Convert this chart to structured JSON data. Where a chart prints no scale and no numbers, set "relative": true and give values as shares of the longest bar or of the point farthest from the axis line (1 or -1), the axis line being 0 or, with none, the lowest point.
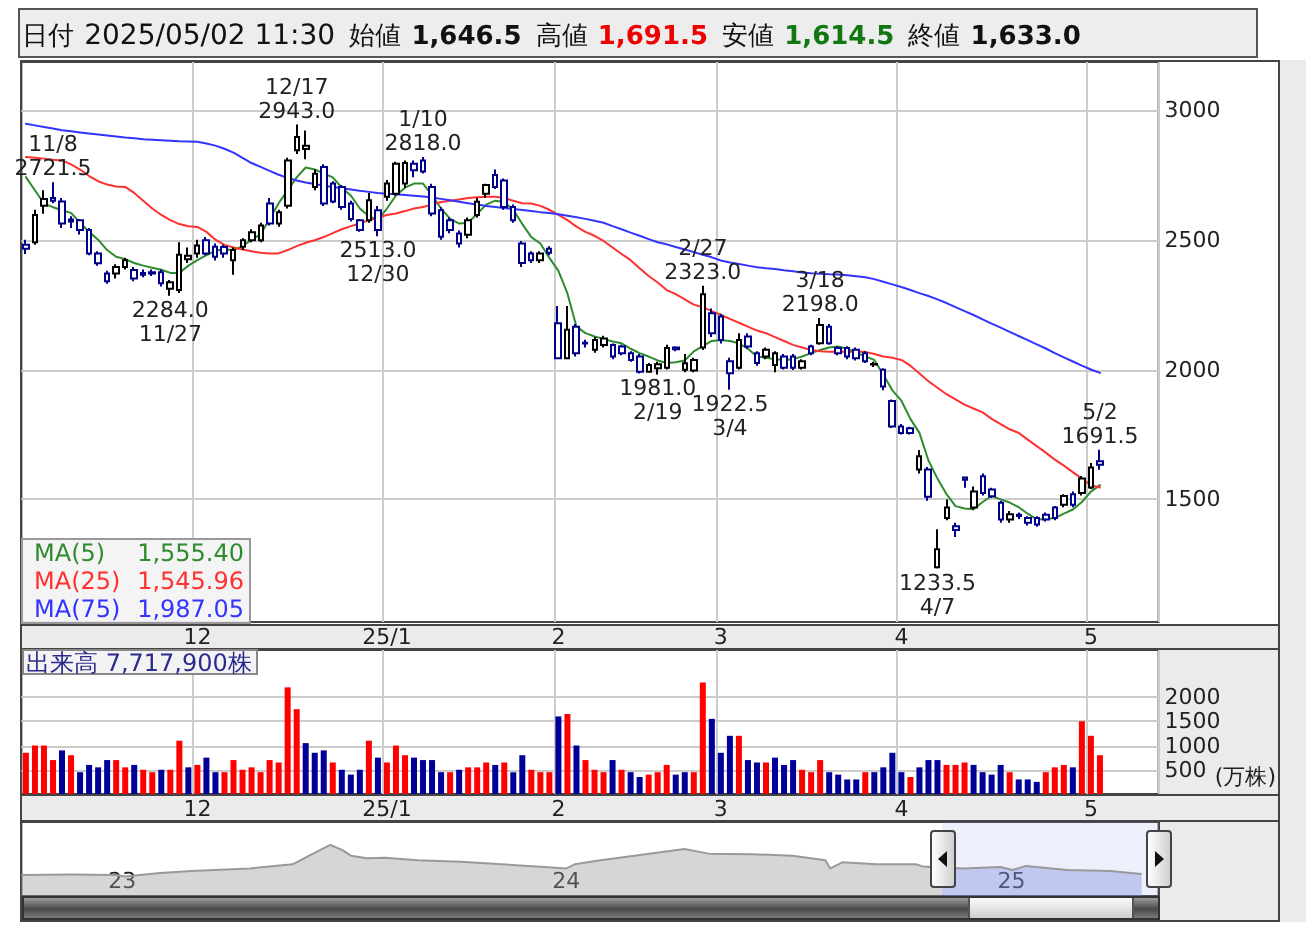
{
  "chart_data": [
    {
      "type": "other",
      "annotations": [
        "日付 2025/05/02 11:30",
        "始値 1,646.5",
        "高値 1,691.5",
        "安値 1,614.5",
        "終値 1,633.0"
      ]
    },
    {
      "type": "candlestick",
      "categories": [
        null,
        null,
        null,
        null,
        null,
        null,
        null,
        null,
        null,
        null,
        null,
        null,
        null,
        null,
        null,
        null,
        null,
        null,
        null,
        "12",
        null,
        null,
        null,
        null,
        null,
        null,
        null,
        null,
        null,
        null,
        null,
        null,
        null,
        null,
        null,
        null,
        null,
        null,
        null,
        null,
        "25/1",
        null,
        null,
        null,
        null,
        null,
        null,
        null,
        null,
        null,
        null,
        null,
        null,
        null,
        null,
        null,
        null,
        null,
        null,
        "2",
        null,
        null,
        null,
        null,
        null,
        null,
        null,
        null,
        null,
        null,
        null,
        null,
        null,
        null,
        null,
        null,
        null,
        "3",
        null,
        null,
        null,
        null,
        null,
        null,
        null,
        null,
        null,
        null,
        null,
        null,
        null,
        null,
        null,
        null,
        null,
        null,
        null,
        "4",
        null,
        null,
        null,
        null,
        null,
        null,
        null,
        null,
        null,
        null,
        null,
        null,
        null,
        null,
        null,
        null,
        null,
        null,
        null,
        null,
        "5",
        null,
        null,
        null,
        null,
        null,
        null,
        null
      ],
      "ohlc": [
        [
          2480,
          2500,
          2445,
          2465
        ],
        [
          2490,
          2615,
          2480,
          2595
        ],
        [
          2631,
          2690,
          2600,
          2657
        ],
        [
          2660,
          2721.5,
          2640,
          2650
        ],
        [
          2647,
          2660,
          2545,
          2562
        ],
        [
          2578,
          2590,
          2545,
          2570
        ],
        [
          2575,
          2580,
          2520,
          2537
        ],
        [
          2537,
          2545,
          2440,
          2447
        ],
        [
          2447,
          2455,
          2400,
          2409
        ],
        [
          2370,
          2380,
          2330,
          2340
        ],
        [
          2370,
          2405,
          2350,
          2395
        ],
        [
          2395,
          2430,
          2385,
          2421
        ],
        [
          2383,
          2395,
          2340,
          2350
        ],
        [
          2372,
          2385,
          2355,
          2365
        ],
        [
          2375,
          2385,
          2360,
          2370
        ],
        [
          2375,
          2385,
          2320,
          2332
        ],
        [
          2311,
          2345,
          2284.0,
          2336
        ],
        [
          2306,
          2490,
          2295,
          2442
        ],
        [
          2425,
          2470,
          2410,
          2438
        ],
        [
          2447,
          2500,
          2430,
          2478
        ],
        [
          2498,
          2510,
          2440,
          2447
        ],
        [
          2473,
          2485,
          2420,
          2434
        ],
        [
          2472,
          2480,
          2430,
          2447
        ],
        [
          2421,
          2470,
          2365,
          2460
        ],
        [
          2473,
          2505,
          2460,
          2498
        ],
        [
          2498,
          2540,
          2490,
          2529
        ],
        [
          2498,
          2565,
          2490,
          2555
        ],
        [
          2639,
          2660,
          2555,
          2562
        ],
        [
          2562,
          2615,
          2550,
          2606
        ],
        [
          2631,
          2815,
          2620,
          2805
        ],
        [
          2844,
          2943.0,
          2830,
          2895
        ],
        [
          2849,
          2920,
          2810,
          2862
        ],
        [
          2703,
          2770,
          2690,
          2754
        ],
        [
          2780,
          2790,
          2630,
          2639
        ],
        [
          2716,
          2725,
          2640,
          2647
        ],
        [
          2703,
          2710,
          2615,
          2626
        ],
        [
          2639,
          2650,
          2570,
          2580
        ],
        [
          2575,
          2580,
          2530,
          2537
        ],
        [
          2575,
          2680,
          2565,
          2652
        ],
        [
          2613,
          2630,
          2513.0,
          2537
        ],
        [
          2665,
          2730,
          2650,
          2716
        ],
        [
          2677,
          2800,
          2670,
          2792
        ],
        [
          2716,
          2805,
          2700,
          2795
        ],
        [
          2792,
          2805,
          2740,
          2767
        ],
        [
          2805,
          2818.0,
          2755,
          2762
        ],
        [
          2703,
          2715,
          2590,
          2601
        ],
        [
          2613,
          2625,
          2500,
          2511
        ],
        [
          2575,
          2585,
          2525,
          2537
        ],
        [
          2524,
          2535,
          2470,
          2485
        ],
        [
          2519,
          2585,
          2505,
          2575
        ],
        [
          2595,
          2660,
          2585,
          2646
        ],
        [
          2677,
          2715,
          2660,
          2710
        ],
        [
          2749,
          2770,
          2695,
          2703
        ],
        [
          2728,
          2735,
          2615,
          2626
        ],
        [
          2626,
          2635,
          2565,
          2575
        ],
        [
          2485,
          2495,
          2395,
          2410
        ],
        [
          2447,
          2455,
          2410,
          2421
        ],
        [
          2421,
          2455,
          2410,
          2447
        ],
        [
          2465,
          2475,
          2440,
          2450
        ],
        [
          2178,
          2245,
          2040,
          2043
        ],
        [
          2043,
          2245,
          2040,
          2153
        ],
        [
          2165,
          2175,
          2050,
          2063
        ],
        [
          2103,
          2115,
          2085,
          2100
        ],
        [
          2076,
          2125,
          2065,
          2114
        ],
        [
          2094,
          2130,
          2085,
          2119
        ],
        [
          2094,
          2100,
          2040,
          2050
        ],
        [
          2089,
          2095,
          2055,
          2063
        ],
        [
          2063,
          2070,
          2030,
          2037
        ],
        [
          2050,
          2060,
          1985,
          1991
        ],
        [
          1991,
          2025,
          1988,
          2017
        ],
        [
          2005,
          2030,
          1981.0,
          2020
        ],
        [
          2007,
          2095,
          2000,
          2083
        ],
        [
          2085,
          2090,
          2070,
          2078
        ],
        [
          1999,
          2060,
          1990,
          2024
        ],
        [
          1996,
          2045,
          1990,
          2037
        ],
        [
          2085,
          2323.0,
          2075,
          2290
        ],
        [
          2217,
          2235,
          2125,
          2140
        ],
        [
          2204,
          2215,
          2100,
          2114
        ],
        [
          2032,
          2045,
          1922.5,
          1986
        ],
        [
          2007,
          2140,
          2000,
          2114
        ],
        [
          2127,
          2140,
          2080,
          2089
        ],
        [
          2063,
          2070,
          2015,
          2025
        ],
        [
          2050,
          2085,
          2040,
          2076
        ],
        [
          2017,
          2070,
          1990,
          2063
        ],
        [
          2050,
          2060,
          2000,
          2007
        ],
        [
          2050,
          2060,
          1998,
          2007
        ],
        [
          2007,
          2040,
          2000,
          2032
        ],
        [
          2089,
          2095,
          2055,
          2063
        ],
        [
          2101,
          2198.0,
          2095,
          2171
        ],
        [
          2165,
          2175,
          2095,
          2101
        ],
        [
          2083,
          2090,
          2055,
          2063
        ],
        [
          2083,
          2090,
          2040,
          2050
        ],
        [
          2076,
          2085,
          2035,
          2043
        ],
        [
          2063,
          2070,
          2025,
          2032
        ],
        [
          2021,
          2030,
          2010,
          2019
        ],
        [
          1999,
          2005,
          1920,
          1935
        ],
        [
          1879,
          1885,
          1775,
          1781
        ],
        [
          1781,
          1790,
          1750,
          1756
        ],
        [
          1774,
          1780,
          1750,
          1756
        ],
        [
          1615,
          1690,
          1600,
          1666
        ],
        [
          1615,
          1625,
          1495,
          1510
        ],
        [
          1239,
          1385,
          1233.5,
          1308
        ],
        [
          1428,
          1500,
          1420,
          1469
        ],
        [
          1397,
          1410,
          1355,
          1382
        ],
        [
          1584,
          1586,
          1545,
          1576
        ],
        [
          1469,
          1550,
          1460,
          1530
        ],
        [
          1589,
          1600,
          1515,
          1525
        ],
        [
          1538,
          1545,
          1505,
          1512
        ],
        [
          1487,
          1495,
          1410,
          1423
        ],
        [
          1423,
          1455,
          1410,
          1443
        ],
        [
          1441,
          1450,
          1425,
          1436
        ],
        [
          1428,
          1435,
          1400,
          1410
        ],
        [
          1428,
          1435,
          1395,
          1403
        ],
        [
          1441,
          1450,
          1415,
          1423
        ],
        [
          1469,
          1475,
          1420,
          1428
        ],
        [
          1479,
          1520,
          1470,
          1513
        ],
        [
          1520,
          1530,
          1470,
          1479
        ],
        [
          1525,
          1590,
          1515,
          1580
        ],
        [
          1546,
          1640,
          1540,
          1623
        ],
        [
          1646.5,
          1691.5,
          1614.5,
          1633.0
        ],
        null,
        null,
        null,
        null,
        null,
        null
      ],
      "colors": [
        "#00008b",
        "#000000",
        "#000000",
        "#00008b",
        "#00008b",
        "#00008b",
        "#00008b",
        "#00008b",
        "#00008b",
        "#00008b",
        "#000000",
        "#000000",
        "#00008b",
        "#00008b",
        "#00008b",
        "#00008b",
        "#000000",
        "#000000",
        "#000000",
        "#000000",
        "#00008b",
        "#00008b",
        "#00008b",
        "#000000",
        "#000000",
        "#000000",
        "#000000",
        "#00008b",
        "#000000",
        "#000000",
        "#000000",
        "#000000",
        "#000000",
        "#00008b",
        "#00008b",
        "#00008b",
        "#00008b",
        "#00008b",
        "#000000",
        "#00008b",
        "#000000",
        "#000000",
        "#000000",
        "#00008b",
        "#00008b",
        "#00008b",
        "#00008b",
        "#00008b",
        "#00008b",
        "#000000",
        "#000000",
        "#000000",
        "#00008b",
        "#00008b",
        "#00008b",
        "#00008b",
        "#00008b",
        "#000000",
        "#00008b",
        "#00008b",
        "#000000",
        "#00008b",
        "#00008b",
        "#000000",
        "#000000",
        "#00008b",
        "#00008b",
        "#00008b",
        "#00008b",
        "#000000",
        "#000000",
        "#000000",
        "#00008b",
        "#000000",
        "#000000",
        "#000000",
        "#00008b",
        "#00008b",
        "#00008b",
        "#000000",
        "#00008b",
        "#00008b",
        "#000000",
        "#000000",
        "#00008b",
        "#00008b",
        "#000000",
        "#00008b",
        "#000000",
        "#00008b",
        "#00008b",
        "#00008b",
        "#00008b",
        "#00008b",
        "#000000",
        "#00008b",
        "#00008b",
        "#00008b",
        "#00008b",
        "#000000",
        "#00008b",
        "#000000",
        "#000000",
        "#00008b",
        "#00008b",
        "#000000",
        "#00008b",
        "#00008b",
        "#00008b",
        "#000000",
        "#00008b",
        "#00008b",
        "#00008b",
        "#00008b",
        "#00008b",
        "#000000",
        "#00008b",
        "#000000",
        "#000000",
        "#00008b",
        null,
        null,
        null,
        null,
        null,
        null
      ],
      "value_labels": [
        null,
        null,
        null,
        "11/8\n2721.5",
        null,
        null,
        null,
        null,
        null,
        null,
        null,
        null,
        null,
        null,
        null,
        null,
        "2284.0\n11/27",
        null,
        null,
        null,
        null,
        null,
        null,
        null,
        null,
        null,
        null,
        null,
        null,
        null,
        "12/17\n2943.0",
        null,
        null,
        null,
        null,
        null,
        null,
        null,
        null,
        "2513.0\n12/30",
        null,
        null,
        null,
        null,
        "1/10\n2818.0",
        null,
        null,
        null,
        null,
        null,
        null,
        null,
        null,
        null,
        null,
        null,
        null,
        null,
        null,
        null,
        null,
        null,
        null,
        null,
        null,
        null,
        null,
        null,
        null,
        null,
        "1981.0\n2/19",
        null,
        null,
        null,
        null,
        "2/27\n2323.0",
        null,
        null,
        "1922.5\n3/4",
        null,
        null,
        null,
        null,
        null,
        null,
        null,
        null,
        null,
        "3/18\n2198.0",
        null,
        null,
        null,
        null,
        null,
        null,
        null,
        null,
        null,
        null,
        null,
        null,
        "1233.5\n4/7",
        null,
        null,
        null,
        null,
        null,
        null,
        null,
        null,
        null,
        null,
        null,
        null,
        null,
        null,
        null,
        null,
        null,
        "5/2\n1691.5",
        null,
        null,
        null,
        null,
        null,
        null
      ],
      "series": [
        {
          "type": "line",
          "name": "MA(5)",
          "color": "#2e8b2e",
          "values": [
            2741,
            2690,
            2639,
            2625,
            2613,
            2603,
            2565,
            2530,
            2500,
            2460,
            2434,
            2425,
            2410,
            2400,
            2392,
            2384,
            2372,
            2372,
            2400,
            2421,
            2440,
            2458,
            2462,
            2460,
            2475,
            2500,
            2520,
            2580,
            2640,
            2690,
            2740,
            2778,
            2770,
            2755,
            2740,
            2700,
            2670,
            2620,
            2590,
            2575,
            2620,
            2670,
            2700,
            2716,
            2716,
            2670,
            2620,
            2580,
            2562,
            2565,
            2600,
            2635,
            2650,
            2645,
            2615,
            2560,
            2510,
            2485,
            2430,
            2380,
            2293,
            2165,
            2140,
            2127,
            2118,
            2108,
            2101,
            2080,
            2063,
            2050,
            2035,
            2025,
            2028,
            2035,
            2070,
            2090,
            2110,
            2114,
            2110,
            2101,
            2080,
            2050,
            2045,
            2040,
            2037,
            2040,
            2050,
            2063,
            2075,
            2085,
            2089,
            2080,
            2065,
            2050,
            2037,
            1980,
            1920,
            1880,
            1810,
            1756,
            1650,
            1580,
            1520,
            1474,
            1465,
            1462,
            1490,
            1513,
            1500,
            1488,
            1470,
            1445,
            1423,
            1425,
            1428,
            1445,
            1461,
            1490,
            1530,
            1555,
            null,
            null,
            null,
            null,
            null,
            null
          ]
        },
        {
          "type": "line",
          "name": "MA(25)",
          "color": "#ff3030",
          "values": [
            2818,
            2815,
            2812,
            2808,
            2805,
            2790,
            2770,
            2745,
            2725,
            2712,
            2705,
            2703,
            2680,
            2650,
            2620,
            2595,
            2575,
            2560,
            2552,
            2549,
            2530,
            2500,
            2480,
            2470,
            2462,
            2455,
            2450,
            2447,
            2447,
            2460,
            2475,
            2488,
            2498,
            2510,
            2525,
            2540,
            2552,
            2562,
            2575,
            2585,
            2595,
            2601,
            2610,
            2620,
            2626,
            2635,
            2645,
            2650,
            2655,
            2660,
            2663,
            2665,
            2665,
            2660,
            2650,
            2640,
            2639,
            2630,
            2615,
            2595,
            2575,
            2550,
            2530,
            2515,
            2495,
            2470,
            2445,
            2421,
            2390,
            2360,
            2335,
            2306,
            2290,
            2270,
            2250,
            2240,
            2225,
            2210,
            2195,
            2180,
            2165,
            2150,
            2140,
            2125,
            2110,
            2095,
            2085,
            2075,
            2070,
            2068,
            2068,
            2068,
            2068,
            2068,
            2060,
            2050,
            2045,
            2037,
            2015,
            1985,
            1955,
            1930,
            1905,
            1885,
            1865,
            1850,
            1835,
            1810,
            1790,
            1770,
            1756,
            1730,
            1705,
            1680,
            1653,
            1630,
            1605,
            1580,
            1555,
            1546,
            null,
            null,
            null,
            null,
            null,
            null
          ]
        },
        {
          "type": "line",
          "name": "MA(75)",
          "color": "#3333ff",
          "values": [
            2946,
            2940,
            2934,
            2928,
            2921,
            2917,
            2913,
            2909,
            2905,
            2901,
            2897,
            2893,
            2890,
            2887,
            2885,
            2883,
            2881,
            2879,
            2878,
            2877,
            2870,
            2862,
            2850,
            2835,
            2815,
            2795,
            2780,
            2765,
            2750,
            2738,
            2728,
            2720,
            2714,
            2708,
            2703,
            2698,
            2693,
            2688,
            2684,
            2680,
            2677,
            2675,
            2672,
            2669,
            2666,
            2662,
            2657,
            2652,
            2646,
            2640,
            2635,
            2630,
            2626,
            2622,
            2618,
            2614,
            2610,
            2606,
            2603,
            2598,
            2592,
            2586,
            2580,
            2573,
            2565,
            2552,
            2540,
            2527,
            2515,
            2502,
            2490,
            2482,
            2472,
            2462,
            2452,
            2442,
            2432,
            2420,
            2412,
            2406,
            2400,
            2394,
            2390,
            2387,
            2382,
            2378,
            2374,
            2371,
            2369,
            2367,
            2366,
            2363,
            2359,
            2355,
            2348,
            2338,
            2328,
            2318,
            2306,
            2294,
            2283,
            2270,
            2256,
            2240,
            2225,
            2210,
            2193,
            2177,
            2161,
            2145,
            2129,
            2113,
            2097,
            2081,
            2063,
            2047,
            2031,
            2015,
            2000,
            1987,
            null,
            null,
            null,
            null,
            null,
            null
          ]
        }
      ],
      "annotations": [
        "1,555.40",
        "1,545.96",
        "1,987.05"
      ],
      "ylim": [
        1028,
        3184
      ],
      "yticks": [
        1500,
        2000,
        2500,
        3000
      ],
      "grid": true,
      "legend": "bottom left"
    },
    {
      "type": "bar",
      "title": "出来高 7,717,900株",
      "ylabel": "(万株)",
      "categories": [
        null,
        null,
        null,
        null,
        null,
        null,
        null,
        null,
        null,
        null,
        null,
        null,
        null,
        null,
        null,
        null,
        null,
        null,
        null,
        "12",
        null,
        null,
        null,
        null,
        null,
        null,
        null,
        null,
        null,
        null,
        null,
        null,
        null,
        null,
        null,
        null,
        null,
        null,
        null,
        null,
        "25/1",
        null,
        null,
        null,
        null,
        null,
        null,
        null,
        null,
        null,
        null,
        null,
        null,
        null,
        null,
        null,
        null,
        null,
        null,
        "2",
        null,
        null,
        null,
        null,
        null,
        null,
        null,
        null,
        null,
        null,
        null,
        null,
        null,
        null,
        null,
        null,
        null,
        "3",
        null,
        null,
        null,
        null,
        null,
        null,
        null,
        null,
        null,
        null,
        null,
        null,
        null,
        null,
        null,
        null,
        null,
        null,
        null,
        "4",
        null,
        null,
        null,
        null,
        null,
        null,
        null,
        null,
        null,
        null,
        null,
        null,
        null,
        null,
        null,
        null,
        null,
        null,
        null,
        null,
        "5",
        null,
        null,
        null,
        null,
        null,
        null,
        null
      ],
      "values": [
        850,
        1000,
        1000,
        700,
        900,
        800,
        450,
        600,
        550,
        700,
        700,
        550,
        600,
        500,
        450,
        500,
        500,
        1100,
        550,
        600,
        750,
        450,
        450,
        700,
        500,
        550,
        450,
        700,
        650,
        2200,
        1750,
        1050,
        850,
        900,
        650,
        500,
        400,
        500,
        1100,
        750,
        650,
        1000,
        800,
        750,
        700,
        700,
        450,
        450,
        500,
        550,
        550,
        650,
        600,
        650,
        450,
        800,
        500,
        450,
        450,
        1600,
        1650,
        1000,
        700,
        500,
        450,
        700,
        500,
        450,
        350,
        400,
        450,
        600,
        400,
        450,
        450,
        2300,
        1550,
        850,
        1200,
        1200,
        700,
        650,
        650,
        750,
        600,
        700,
        500,
        450,
        700,
        450,
        400,
        300,
        300,
        450,
        450,
        550,
        850,
        450,
        350,
        550,
        700,
        700,
        600,
        600,
        650,
        600,
        450,
        400,
        600,
        450,
        300,
        300,
        250,
        450,
        550,
        600,
        550,
        1500,
        1200,
        800,
        null,
        null,
        null,
        null,
        null,
        null
      ],
      "colors": [
        "#ff0000",
        "#ff0000",
        "#ff0000",
        "#ff0000",
        "#000099",
        "#ff0000",
        "#000099",
        "#000099",
        "#000099",
        "#000099",
        "#ff0000",
        "#ff0000",
        "#000099",
        "#ff0000",
        "#ff0000",
        "#000099",
        "#ff0000",
        "#ff0000",
        "#000099",
        "#ff0000",
        "#000099",
        "#000099",
        "#ff0000",
        "#ff0000",
        "#ff0000",
        "#ff0000",
        "#ff0000",
        "#ff0000",
        "#ff0000",
        "#ff0000",
        "#ff0000",
        "#000099",
        "#000099",
        "#000099",
        "#ff0000",
        "#000099",
        "#000099",
        "#000099",
        "#ff0000",
        "#000099",
        "#ff0000",
        "#ff0000",
        "#ff0000",
        "#000099",
        "#000099",
        "#000099",
        "#000099",
        "#ff0000",
        "#000099",
        "#ff0000",
        "#ff0000",
        "#ff0000",
        "#000099",
        "#ff0000",
        "#000099",
        "#000099",
        "#ff0000",
        "#ff0000",
        "#ff0000",
        "#000099",
        "#ff0000",
        "#000099",
        "#ff0000",
        "#ff0000",
        "#ff0000",
        "#000099",
        "#ff0000",
        "#000099",
        "#000099",
        "#ff0000",
        "#ff0000",
        "#ff0000",
        "#000099",
        "#000099",
        "#ff0000",
        "#ff0000",
        "#000099",
        "#000099",
        "#000099",
        "#ff0000",
        "#000099",
        "#000099",
        "#ff0000",
        "#000099",
        "#000099",
        "#000099",
        "#ff0000",
        "#ff0000",
        "#ff0000",
        "#000099",
        "#000099",
        "#000099",
        "#000099",
        "#ff0000",
        "#000099",
        "#000099",
        "#000099",
        "#000099",
        "#ff0000",
        "#000099",
        "#000099",
        "#000099",
        "#ff0000",
        "#ff0000",
        "#ff0000",
        "#000099",
        "#000099",
        "#000099",
        "#000099",
        "#ff0000",
        "#000099",
        "#000099",
        "#000099",
        "#ff0000",
        "#ff0000",
        "#ff0000",
        "#000099",
        "#ff0000",
        "#ff0000",
        "#ff0000",
        null,
        null,
        null,
        null,
        null,
        null
      ],
      "ylim": [
        0,
        2970
      ],
      "yticks": [
        500,
        1000,
        1500,
        2000
      ],
      "grid": true
    },
    {
      "type": "area",
      "relative": true,
      "color": "#999999",
      "x": [
        "2022-10-10",
        "2022-11-20",
        "2022-12-27",
        "2023-01-03",
        "2023-02-01",
        "2023-02-27",
        "2023-04-16",
        "2023-05-21",
        "2023-06-10",
        "2023-06-21",
        "2023-07-01",
        "2023-07-08",
        "2023-07-21",
        "2023-08-05",
        "2023-09-01",
        "2023-10-06",
        "2023-11-09",
        "2023-12-14",
        "2024-01-01",
        "2024-01-08",
        "2024-01-29",
        "2024-02-26",
        "2024-03-23",
        "2024-04-07",
        "2024-04-27",
        "2024-06-01",
        "2024-07-05",
        "2024-08-01",
        "2024-08-05",
        "2024-08-15",
        "2024-09-12",
        "2024-10-15",
        "2024-10-20",
        "2024-11-22",
        "2024-12-23",
        "2025-01-02",
        "2025-01-13",
        "2025-02-16",
        "2025-03-23",
        "2025-04-18"
      ],
      "values": [
        0.41,
        0.42,
        0.41,
        0.38,
        0.45,
        0.49,
        0.54,
        0.62,
        0.87,
        1.0,
        0.9,
        0.79,
        0.74,
        0.75,
        0.7,
        0.67,
        0.62,
        0.57,
        0.54,
        0.62,
        0.7,
        0.79,
        0.87,
        0.92,
        0.83,
        0.82,
        0.79,
        0.7,
        0.54,
        0.66,
        0.62,
        0.62,
        0.58,
        0.54,
        0.57,
        0.51,
        0.59,
        0.51,
        0.49,
        0.43
      ],
      "xlim": [
        "2022-10-10",
        "2025-05-02"
      ],
      "xticks": [
        {
          "value": "2023-01-01",
          "label": "23"
        },
        {
          "value": "2024-01-01",
          "label": "24"
        },
        {
          "value": "2025-01-01",
          "label": "25"
        }
      ],
      "bands": [
        {
          "axis": "x",
          "from": "2024-11-05",
          "to": "2025-05-02",
          "color": "#7f8ce0"
        }
      ]
    }
  ]
}
